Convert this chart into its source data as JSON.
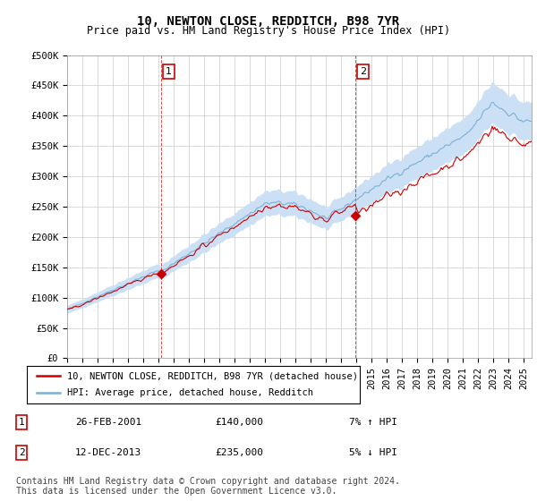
{
  "title": "10, NEWTON CLOSE, REDDITCH, B98 7YR",
  "subtitle": "Price paid vs. HM Land Registry's House Price Index (HPI)",
  "price_paid_color": "#cc0000",
  "hpi_fill_color": "#cce0f5",
  "hpi_line_color": "#7ab0d8",
  "annotation_color": "#cc0000",
  "grid_color": "#cccccc",
  "background_color": "#ffffff",
  "legend_label_price": "10, NEWTON CLOSE, REDDITCH, B98 7YR (detached house)",
  "legend_label_hpi": "HPI: Average price, detached house, Redditch",
  "transaction1_date": "26-FEB-2001",
  "transaction1_price": "£140,000",
  "transaction1_hpi": "7% ↑ HPI",
  "transaction2_date": "12-DEC-2013",
  "transaction2_price": "£235,000",
  "transaction2_hpi": "5% ↓ HPI",
  "footer": "Contains HM Land Registry data © Crown copyright and database right 2024.\nThis data is licensed under the Open Government Licence v3.0.",
  "ylim": [
    0,
    500000
  ],
  "yticks": [
    0,
    50000,
    100000,
    150000,
    200000,
    250000,
    300000,
    350000,
    400000,
    450000,
    500000
  ],
  "ytick_labels": [
    "£0",
    "£50K",
    "£100K",
    "£150K",
    "£200K",
    "£250K",
    "£300K",
    "£350K",
    "£400K",
    "£450K",
    "£500K"
  ],
  "xlim_start": 1995.0,
  "xlim_end": 2025.5,
  "vline1_x": 2001.15,
  "vline2_x": 2013.92,
  "sale1_x": 2001.15,
  "sale1_y": 140000,
  "sale2_x": 2013.92,
  "sale2_y": 235000,
  "title_fontsize": 10,
  "subtitle_fontsize": 8.5,
  "tick_fontsize": 7.5,
  "legend_fontsize": 8,
  "footer_fontsize": 7
}
